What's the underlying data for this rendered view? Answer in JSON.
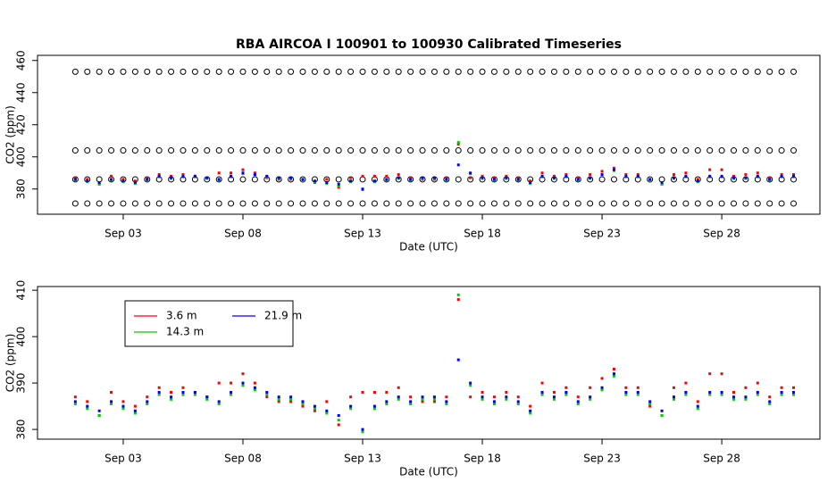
{
  "chart_data": [
    {
      "type": "scatter",
      "title": "RBA   AIRCOA I   100901  to  100930   Calibrated Timeseries",
      "x_label": "Date (UTC)",
      "y_label": "CO2 (ppm)",
      "x": [
        1,
        1.5,
        2,
        2.5,
        3,
        3.5,
        4,
        4.5,
        5,
        5.5,
        6,
        6.5,
        7,
        7.5,
        8,
        8.5,
        9,
        9.5,
        10,
        10.5,
        11,
        11.5,
        12,
        12.5,
        13,
        13.5,
        14,
        14.5,
        15,
        15.5,
        16,
        16.5,
        17,
        17.5,
        18,
        18.5,
        19,
        19.5,
        20,
        20.5,
        21,
        21.5,
        22,
        22.5,
        23,
        23.5,
        24,
        24.5,
        25,
        25.5,
        26,
        26.5,
        27,
        27.5,
        28,
        28.5,
        29,
        29.5,
        30,
        30.5,
        31
      ],
      "xlim": [
        -0.58,
        32.1
      ],
      "xticks": [
        {
          "value": 3,
          "label": "Sep 03"
        },
        {
          "value": 8,
          "label": "Sep 08"
        },
        {
          "value": 13,
          "label": "Sep 13"
        },
        {
          "value": 18,
          "label": "Sep 18"
        },
        {
          "value": 23,
          "label": "Sep 23"
        },
        {
          "value": 28,
          "label": "Sep 28"
        }
      ],
      "ylim": [
        364.3,
        463.2
      ],
      "yticks": [
        380,
        400,
        420,
        440,
        460
      ],
      "series": [
        {
          "color": "#000000",
          "marker": "circle",
          "values": [
            453,
            453,
            453,
            453,
            453,
            453,
            453,
            453,
            453,
            453,
            453,
            453,
            453,
            453,
            453,
            453,
            453,
            453,
            453,
            453,
            453,
            453,
            453,
            453,
            453,
            453,
            453,
            453,
            453,
            453,
            453,
            453,
            453,
            453,
            453,
            453,
            453,
            453,
            453,
            453,
            453,
            453,
            453,
            453,
            453,
            453,
            453,
            453,
            453,
            453,
            453,
            453,
            453,
            453,
            453,
            453,
            453,
            453,
            453,
            453,
            453
          ]
        },
        {
          "color": "#000000",
          "marker": "circle",
          "values": [
            404,
            404,
            404,
            404,
            404,
            404,
            404,
            404,
            404,
            404,
            404,
            404,
            404,
            404,
            404,
            404,
            404,
            404,
            404,
            404,
            404,
            404,
            404,
            404,
            404,
            404,
            404,
            404,
            404,
            404,
            404,
            404,
            404,
            404,
            404,
            404,
            404,
            404,
            404,
            404,
            404,
            404,
            404,
            404,
            404,
            404,
            404,
            404,
            404,
            404,
            404,
            404,
            404,
            404,
            404,
            404,
            404,
            404,
            404,
            404,
            404
          ]
        },
        {
          "color": "#000000",
          "marker": "circle",
          "values": [
            386,
            386,
            386,
            386,
            386,
            386,
            386,
            386,
            386,
            386,
            386,
            386,
            386,
            386,
            386,
            386,
            386,
            386,
            386,
            386,
            386,
            386,
            386,
            386,
            386,
            386,
            386,
            386,
            386,
            386,
            386,
            386,
            386,
            386,
            386,
            386,
            386,
            386,
            386,
            386,
            386,
            386,
            386,
            386,
            386,
            386,
            386,
            386,
            386,
            386,
            386,
            386,
            386,
            386,
            386,
            386,
            386,
            386,
            386,
            386,
            386
          ]
        },
        {
          "color": "#000000",
          "marker": "circle",
          "values": [
            371,
            371,
            371,
            371,
            371,
            371,
            371,
            371,
            371,
            371,
            371,
            371,
            371,
            371,
            371,
            371,
            371,
            371,
            371,
            371,
            371,
            371,
            371,
            371,
            371,
            371,
            371,
            371,
            371,
            371,
            371,
            371,
            371,
            371,
            371,
            371,
            371,
            371,
            371,
            371,
            371,
            371,
            371,
            371,
            371,
            371,
            371,
            371,
            371,
            371,
            371,
            371,
            371,
            371,
            371,
            371,
            371,
            371,
            371,
            371,
            371
          ]
        },
        {
          "color": "#ff0000",
          "marker": "square",
          "values": [
            387,
            386,
            383,
            388,
            386,
            385,
            387,
            389,
            388,
            389,
            388,
            387,
            390,
            390,
            392,
            390,
            387,
            386,
            386,
            385,
            384,
            386,
            381,
            387,
            388,
            388,
            388,
            389,
            387,
            386,
            386,
            387,
            408,
            387,
            388,
            387,
            388,
            387,
            385,
            390,
            388,
            389,
            387,
            389,
            391,
            393,
            389,
            389,
            385,
            383,
            389,
            390,
            386,
            392,
            392,
            388,
            389,
            390,
            387,
            389,
            389
          ]
        },
        {
          "color": "#00cc00",
          "marker": "square",
          "values": [
            385.5,
            384.5,
            383,
            385.5,
            384.5,
            383.5,
            385.5,
            387.5,
            386.5,
            387.5,
            387.5,
            386.5,
            385.5,
            387.5,
            389.5,
            388.5,
            387.5,
            386.5,
            386.5,
            385.5,
            384.5,
            383.5,
            382,
            384.5,
            379.5,
            384.5,
            385.5,
            386.5,
            385.5,
            386.5,
            386.5,
            385.5,
            409,
            389.5,
            386.5,
            385.5,
            386.5,
            385.5,
            383.5,
            387.5,
            386.5,
            387.5,
            385.5,
            386.5,
            388.5,
            391.5,
            387.5,
            387.5,
            385.5,
            383,
            386.5,
            387.5,
            384.5,
            387.5,
            387.5,
            386.5,
            386.5,
            387.5,
            385.5,
            387.5,
            387.5
          ]
        },
        {
          "color": "#0000ff",
          "marker": "square",
          "values": [
            386,
            385,
            384,
            386,
            385,
            384,
            386,
            388,
            387,
            388,
            388,
            387,
            386,
            388,
            390,
            389,
            388,
            387,
            387,
            386,
            385,
            384,
            383,
            385,
            380,
            385,
            386,
            387,
            386,
            387,
            387,
            386,
            395,
            390,
            387,
            386,
            387,
            386,
            384,
            388,
            387,
            388,
            386,
            387,
            389,
            392,
            388,
            388,
            386,
            384,
            387,
            388,
            385,
            388,
            388,
            387,
            387,
            388,
            386,
            388,
            388
          ]
        }
      ]
    },
    {
      "type": "scatter",
      "x_label": "Date (UTC)",
      "y_label": "CO2 (ppm)",
      "legend": "top-left",
      "x": [
        1,
        1.5,
        2,
        2.5,
        3,
        3.5,
        4,
        4.5,
        5,
        5.5,
        6,
        6.5,
        7,
        7.5,
        8,
        8.5,
        9,
        9.5,
        10,
        10.5,
        11,
        11.5,
        12,
        12.5,
        13,
        13.5,
        14,
        14.5,
        15,
        15.5,
        16,
        16.5,
        17,
        17.5,
        18,
        18.5,
        19,
        19.5,
        20,
        20.5,
        21,
        21.5,
        22,
        22.5,
        23,
        23.5,
        24,
        24.5,
        25,
        25.5,
        26,
        26.5,
        27,
        27.5,
        28,
        28.5,
        29,
        29.5,
        30,
        30.5,
        31
      ],
      "xlim": [
        -0.58,
        32.1
      ],
      "xticks": [
        {
          "value": 3,
          "label": "Sep 03"
        },
        {
          "value": 8,
          "label": "Sep 08"
        },
        {
          "value": 13,
          "label": "Sep 13"
        },
        {
          "value": 18,
          "label": "Sep 18"
        },
        {
          "value": 23,
          "label": "Sep 23"
        },
        {
          "value": 28,
          "label": "Sep 28"
        }
      ],
      "ylim": [
        377.9,
        410.8
      ],
      "yticks": [
        380,
        390,
        400,
        410
      ],
      "series": [
        {
          "name": "3.6 m",
          "color": "#ff0000",
          "marker": "square",
          "values": [
            387,
            386,
            383,
            388,
            386,
            385,
            387,
            389,
            388,
            389,
            388,
            387,
            390,
            390,
            392,
            390,
            387,
            386,
            386,
            385,
            384,
            386,
            381,
            387,
            388,
            388,
            388,
            389,
            387,
            386,
            386,
            387,
            408,
            387,
            388,
            387,
            388,
            387,
            385,
            390,
            388,
            389,
            387,
            389,
            391,
            393,
            389,
            389,
            385,
            383,
            389,
            390,
            386,
            392,
            392,
            388,
            389,
            390,
            387,
            389,
            389
          ]
        },
        {
          "name": "14.3 m",
          "color": "#00cc00",
          "marker": "square",
          "values": [
            385.5,
            384.5,
            383,
            385.5,
            384.5,
            383.5,
            385.5,
            387.5,
            386.5,
            387.5,
            387.5,
            386.5,
            385.5,
            387.5,
            389.5,
            388.5,
            387.5,
            386.5,
            386.5,
            385.5,
            384.5,
            383.5,
            382,
            384.5,
            379.5,
            384.5,
            385.5,
            386.5,
            385.5,
            386.5,
            386.5,
            385.5,
            409,
            389.5,
            386.5,
            385.5,
            386.5,
            385.5,
            383.5,
            387.5,
            386.5,
            387.5,
            385.5,
            386.5,
            388.5,
            391.5,
            387.5,
            387.5,
            385.5,
            383,
            386.5,
            387.5,
            384.5,
            387.5,
            387.5,
            386.5,
            386.5,
            387.5,
            385.5,
            387.5,
            387.5
          ]
        },
        {
          "name": "21.9 m",
          "color": "#0000ff",
          "marker": "square",
          "values": [
            386,
            385,
            384,
            386,
            385,
            384,
            386,
            388,
            387,
            388,
            388,
            387,
            386,
            388,
            390,
            389,
            388,
            387,
            387,
            386,
            385,
            384,
            383,
            385,
            380,
            385,
            386,
            387,
            386,
            387,
            387,
            386,
            395,
            390,
            387,
            386,
            387,
            386,
            384,
            388,
            387,
            388,
            386,
            387,
            389,
            392,
            388,
            388,
            386,
            384,
            387,
            388,
            385,
            388,
            388,
            387,
            387,
            388,
            386,
            388,
            388
          ]
        }
      ]
    }
  ]
}
